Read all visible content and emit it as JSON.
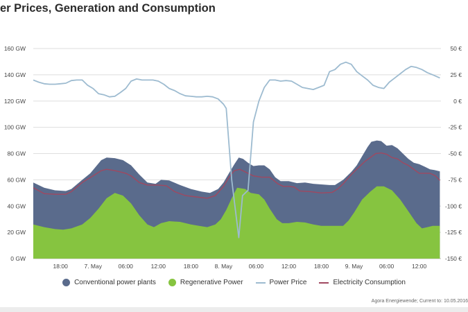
{
  "page_title": "er Prices, Generation and Consumption",
  "credit": "Agora Energiewende; Current to: 10.05.2016",
  "legend": [
    {
      "label": "Conventional power plants",
      "color": "#5a6b8c",
      "kind": "dot"
    },
    {
      "label": "Regenerative Power",
      "color": "#86c440",
      "kind": "dot"
    },
    {
      "label": "Power Price",
      "color": "#9dbbd0",
      "kind": "line"
    },
    {
      "label": "Electricity Consumption",
      "color": "#a04860",
      "kind": "line"
    }
  ],
  "chart_data": {
    "type": "area",
    "title": "",
    "x_tick_labels": [
      "18:00",
      "7. May",
      "06:00",
      "12:00",
      "18:00",
      "8. May",
      "06:00",
      "12:00",
      "18:00",
      "9. May",
      "06:00",
      "12:00"
    ],
    "x_tick_hours": [
      18,
      24,
      30,
      36,
      42,
      48,
      54,
      60,
      66,
      72,
      78,
      84
    ],
    "x_range_hours": [
      13,
      88
    ],
    "y_left": {
      "unit": "GW",
      "range": [
        0,
        160
      ],
      "ticks": [
        0,
        20,
        40,
        60,
        80,
        100,
        120,
        140,
        160
      ],
      "tick_labels": [
        "0 GW",
        "20 GW",
        "40 GW",
        "60 GW",
        "80 GW",
        "100 GW",
        "120 GW",
        "140 GW",
        "160 GW"
      ]
    },
    "y_right": {
      "unit": "€",
      "range": [
        -150,
        50
      ],
      "ticks": [
        50,
        25,
        0,
        -25,
        -50,
        -75,
        -100,
        -125,
        -150
      ],
      "tick_labels": [
        "50 €",
        "25 €",
        "0 €",
        "-25 €",
        "-50 €",
        "-75 €",
        "-100 €",
        "-125 €",
        "-150 €"
      ]
    },
    "grid": true,
    "colors": {
      "conventional": "#5a6b8c",
      "regenerative": "#86c440",
      "price": "#9dbbd0",
      "consumption": "#a04860"
    },
    "series": [
      {
        "name": "Regenerative Power",
        "axis": "left",
        "stacked": true,
        "points": [
          [
            13,
            26
          ],
          [
            15,
            24
          ],
          [
            17,
            22.5
          ],
          [
            18.5,
            22
          ],
          [
            20,
            23
          ],
          [
            22,
            26
          ],
          [
            23.5,
            31
          ],
          [
            25,
            38
          ],
          [
            26.5,
            46
          ],
          [
            28,
            50
          ],
          [
            29.5,
            48
          ],
          [
            31,
            42
          ],
          [
            32.5,
            33
          ],
          [
            34,
            26
          ],
          [
            35.2,
            24
          ],
          [
            36.5,
            27
          ],
          [
            38,
            28.5
          ],
          [
            40,
            28
          ],
          [
            42,
            26
          ],
          [
            43.5,
            25
          ],
          [
            45,
            24
          ],
          [
            46.5,
            26
          ],
          [
            47.5,
            30
          ],
          [
            48.5,
            37
          ],
          [
            49.5,
            46
          ],
          [
            50.5,
            54
          ],
          [
            52,
            53
          ],
          [
            53,
            50
          ],
          [
            54.5,
            49
          ],
          [
            55.5,
            45
          ],
          [
            56.5,
            38
          ],
          [
            57.8,
            30
          ],
          [
            58.8,
            27
          ],
          [
            60,
            27
          ],
          [
            61.5,
            28
          ],
          [
            63,
            27.5
          ],
          [
            64.5,
            26
          ],
          [
            66,
            25
          ],
          [
            67.5,
            25
          ],
          [
            69,
            25
          ],
          [
            70,
            25
          ],
          [
            71,
            29
          ],
          [
            72,
            35
          ],
          [
            73.5,
            45
          ],
          [
            75,
            51
          ],
          [
            76.2,
            55
          ],
          [
            77.5,
            55
          ],
          [
            79,
            52
          ],
          [
            80.5,
            45
          ],
          [
            82,
            36
          ],
          [
            83.5,
            27
          ],
          [
            84.5,
            23
          ],
          [
            85.5,
            24
          ],
          [
            86.5,
            25
          ],
          [
            87.8,
            25
          ]
        ]
      },
      {
        "name": "Conventional power plants",
        "axis": "left",
        "stacked": true,
        "total_points": [
          [
            13,
            58
          ],
          [
            15,
            54
          ],
          [
            17,
            52
          ],
          [
            19,
            51.5
          ],
          [
            20,
            53
          ],
          [
            22,
            60
          ],
          [
            23.5,
            65
          ],
          [
            24.5,
            70
          ],
          [
            25.5,
            75
          ],
          [
            26.5,
            77
          ],
          [
            28,
            76.5
          ],
          [
            29.5,
            75
          ],
          [
            31,
            71
          ],
          [
            32.5,
            64
          ],
          [
            34,
            58
          ],
          [
            35.5,
            57
          ],
          [
            36.5,
            60
          ],
          [
            38,
            59.5
          ],
          [
            40,
            56
          ],
          [
            42,
            53
          ],
          [
            44,
            51
          ],
          [
            45.5,
            50
          ],
          [
            47,
            53
          ],
          [
            48,
            58
          ],
          [
            49,
            65
          ],
          [
            50,
            72
          ],
          [
            50.8,
            77
          ],
          [
            51.6,
            76
          ],
          [
            52.5,
            73
          ],
          [
            53.5,
            70.5
          ],
          [
            54.5,
            71
          ],
          [
            55.5,
            71
          ],
          [
            56.5,
            68
          ],
          [
            57.5,
            62
          ],
          [
            58.5,
            59
          ],
          [
            60,
            59
          ],
          [
            61.5,
            57.5
          ],
          [
            63,
            58
          ],
          [
            64.5,
            57
          ],
          [
            66,
            56.5
          ],
          [
            67.5,
            56
          ],
          [
            68.5,
            56
          ],
          [
            70,
            60
          ],
          [
            71.5,
            66
          ],
          [
            72.5,
            71
          ],
          [
            73.5,
            78
          ],
          [
            74.5,
            85
          ],
          [
            75.2,
            89
          ],
          [
            76.2,
            90
          ],
          [
            77,
            89.5
          ],
          [
            78,
            86
          ],
          [
            79,
            86.5
          ],
          [
            80,
            84
          ],
          [
            81,
            80
          ],
          [
            82,
            76
          ],
          [
            83,
            73
          ],
          [
            84,
            72
          ],
          [
            85,
            70
          ],
          [
            86,
            68
          ],
          [
            86.8,
            67.5
          ],
          [
            87.8,
            66.5
          ]
        ]
      },
      {
        "name": "Electricity Consumption",
        "axis": "left",
        "points": [
          [
            13,
            54
          ],
          [
            15,
            49.5
          ],
          [
            17,
            49
          ],
          [
            19,
            49
          ],
          [
            20,
            51
          ],
          [
            22,
            58
          ],
          [
            24,
            63
          ],
          [
            25.5,
            67
          ],
          [
            26.5,
            68
          ],
          [
            28,
            67
          ],
          [
            30,
            65
          ],
          [
            31,
            63
          ],
          [
            32.5,
            58
          ],
          [
            34,
            56
          ],
          [
            36,
            56
          ],
          [
            37.5,
            55.5
          ],
          [
            39,
            51
          ],
          [
            41,
            48
          ],
          [
            43,
            47
          ],
          [
            45,
            46
          ],
          [
            46.5,
            48
          ],
          [
            48,
            55
          ],
          [
            49,
            62
          ],
          [
            50,
            67
          ],
          [
            51,
            68
          ],
          [
            52,
            66
          ],
          [
            53.5,
            63
          ],
          [
            55,
            62
          ],
          [
            56.5,
            62
          ],
          [
            58,
            57
          ],
          [
            59,
            55
          ],
          [
            60,
            55
          ],
          [
            61,
            54.5
          ],
          [
            62,
            51.5
          ],
          [
            64,
            51
          ],
          [
            66,
            50
          ],
          [
            68,
            50.5
          ],
          [
            69,
            53
          ],
          [
            70,
            57
          ],
          [
            71.5,
            64
          ],
          [
            73,
            70
          ],
          [
            74,
            74
          ],
          [
            75,
            77
          ],
          [
            76,
            80
          ],
          [
            77,
            80.5
          ],
          [
            78,
            79.5
          ],
          [
            79,
            77
          ],
          [
            80,
            76
          ],
          [
            81,
            73
          ],
          [
            82,
            71
          ],
          [
            83,
            68
          ],
          [
            84,
            65
          ],
          [
            85,
            65
          ],
          [
            86,
            65
          ],
          [
            87,
            63
          ],
          [
            87.8,
            59.5
          ]
        ]
      },
      {
        "name": "Power Price",
        "axis": "right",
        "points": [
          [
            13,
            20
          ],
          [
            14,
            18
          ],
          [
            15,
            16.5
          ],
          [
            16,
            16
          ],
          [
            17,
            16
          ],
          [
            18,
            16.5
          ],
          [
            19,
            17
          ],
          [
            20,
            19.5
          ],
          [
            21,
            20
          ],
          [
            22,
            20
          ],
          [
            23,
            15
          ],
          [
            24,
            12
          ],
          [
            25,
            7
          ],
          [
            26,
            6
          ],
          [
            27,
            4
          ],
          [
            28,
            4.5
          ],
          [
            29,
            8
          ],
          [
            30,
            12
          ],
          [
            31,
            19
          ],
          [
            32,
            21
          ],
          [
            33,
            20
          ],
          [
            34,
            20
          ],
          [
            35,
            20
          ],
          [
            36,
            19
          ],
          [
            37,
            16
          ],
          [
            38,
            12
          ],
          [
            39,
            10
          ],
          [
            40,
            7
          ],
          [
            41,
            5
          ],
          [
            42,
            4.5
          ],
          [
            43,
            4
          ],
          [
            44,
            4
          ],
          [
            45,
            4.5
          ],
          [
            46,
            4
          ],
          [
            47,
            2
          ],
          [
            48,
            -3
          ],
          [
            48.5,
            -7
          ],
          [
            49.5,
            -75
          ],
          [
            50.8,
            -130
          ],
          [
            51.5,
            -90
          ],
          [
            52.5,
            -85
          ],
          [
            53.5,
            -20
          ],
          [
            54.5,
            0
          ],
          [
            55.5,
            13
          ],
          [
            56.5,
            20
          ],
          [
            57.5,
            20
          ],
          [
            58.5,
            19
          ],
          [
            59.5,
            19.5
          ],
          [
            60.5,
            19
          ],
          [
            61.5,
            16
          ],
          [
            62.5,
            13
          ],
          [
            63.5,
            12
          ],
          [
            64.5,
            11
          ],
          [
            65.5,
            13
          ],
          [
            66.5,
            15
          ],
          [
            67.5,
            28
          ],
          [
            68.5,
            30
          ],
          [
            69.5,
            35
          ],
          [
            70.5,
            37
          ],
          [
            71.5,
            35
          ],
          [
            72.5,
            28
          ],
          [
            73.5,
            24
          ],
          [
            74.5,
            20
          ],
          [
            75.5,
            15
          ],
          [
            76.5,
            13
          ],
          [
            77.5,
            12
          ],
          [
            78.5,
            18
          ],
          [
            79.5,
            22
          ],
          [
            80.5,
            26
          ],
          [
            81.5,
            30
          ],
          [
            82.5,
            33
          ],
          [
            83.5,
            32
          ],
          [
            84.5,
            30
          ],
          [
            85.5,
            27
          ],
          [
            86.5,
            25
          ],
          [
            87.8,
            22
          ]
        ]
      }
    ]
  }
}
